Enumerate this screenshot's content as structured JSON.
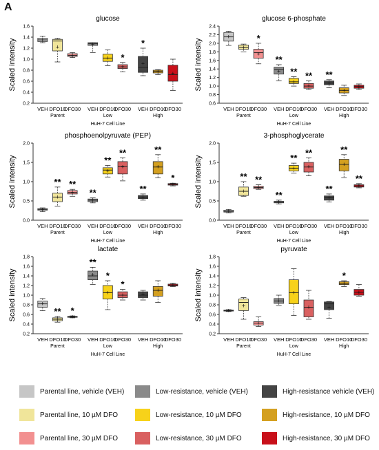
{
  "panel_letter": "A",
  "colors": {
    "pVEH": "#c6c6c6",
    "pD10": "#f0e59a",
    "pD30": "#f29090",
    "lVEH": "#8a8a8a",
    "lD10": "#f7d21a",
    "lD30": "#d96060",
    "hVEH": "#444444",
    "hD10": "#d4a020",
    "hD30": "#c8101a"
  },
  "shared": {
    "ylabel": "Scaled intensity",
    "xlabel": "HuH-7 Cell Line",
    "tick_labels": [
      "VEH",
      "DFO10",
      "DFO30",
      "VEH",
      "DFO10",
      "DFO30",
      "VEH",
      "DFO10",
      "DFO30"
    ],
    "groups": [
      "Parent",
      "Low",
      "High"
    ]
  },
  "chart_data": [
    {
      "type": "box",
      "title": "glucose",
      "ylim": [
        0.2,
        1.6
      ],
      "yticks": [
        "0.2",
        "0.4",
        "0.6",
        "0.8",
        "1.0",
        "1.2",
        "1.4",
        "1.6"
      ],
      "boxes": [
        {
          "q1": 1.32,
          "med": 1.35,
          "q3": 1.38,
          "min": 1.3,
          "max": 1.42,
          "mean": 1.35,
          "sig": ""
        },
        {
          "q1": 1.15,
          "med": 1.33,
          "q3": 1.36,
          "min": 0.95,
          "max": 1.38,
          "mean": 1.22,
          "sig": ""
        },
        {
          "q1": 1.05,
          "med": 1.07,
          "q3": 1.1,
          "min": 1.03,
          "max": 1.12,
          "mean": 1.07,
          "sig": ""
        },
        {
          "q1": 1.25,
          "med": 1.28,
          "q3": 1.3,
          "min": 1.12,
          "max": 1.3,
          "mean": 1.27,
          "sig": ""
        },
        {
          "q1": 0.96,
          "med": 1.02,
          "q3": 1.09,
          "min": 0.88,
          "max": 1.17,
          "mean": 1.02,
          "sig": ""
        },
        {
          "q1": 0.83,
          "med": 0.86,
          "q3": 0.9,
          "min": 0.77,
          "max": 0.94,
          "mean": 0.86,
          "sig": "*"
        },
        {
          "q1": 0.76,
          "med": 0.85,
          "q3": 1.05,
          "min": 0.7,
          "max": 1.2,
          "mean": 0.92,
          "sig": "*"
        },
        {
          "q1": 0.75,
          "med": 0.78,
          "q3": 0.8,
          "min": 0.72,
          "max": 0.81,
          "mean": 0.78,
          "sig": ""
        },
        {
          "q1": 0.6,
          "med": 0.72,
          "q3": 0.89,
          "min": 0.43,
          "max": 1.0,
          "mean": 0.74,
          "sig": ""
        }
      ]
    },
    {
      "type": "box",
      "title": "glucose 6-phosphate",
      "ylim": [
        0.6,
        2.4
      ],
      "yticks": [
        "0.6",
        "0.8",
        "1.0",
        "1.2",
        "1.4",
        "1.6",
        "1.8",
        "2.0",
        "2.2",
        "2.4"
      ],
      "boxes": [
        {
          "q1": 2.05,
          "med": 2.15,
          "q3": 2.25,
          "min": 1.95,
          "max": 2.28,
          "mean": 2.15,
          "sig": ""
        },
        {
          "q1": 1.86,
          "med": 1.9,
          "q3": 1.96,
          "min": 1.8,
          "max": 1.98,
          "mean": 1.9,
          "sig": ""
        },
        {
          "q1": 1.65,
          "med": 1.78,
          "q3": 1.86,
          "min": 1.52,
          "max": 2.0,
          "mean": 1.75,
          "sig": "*"
        },
        {
          "q1": 1.28,
          "med": 1.38,
          "q3": 1.44,
          "min": 1.12,
          "max": 1.5,
          "mean": 1.35,
          "sig": "**"
        },
        {
          "q1": 1.06,
          "med": 1.1,
          "q3": 1.18,
          "min": 1.0,
          "max": 1.22,
          "mean": 1.1,
          "sig": "**"
        },
        {
          "q1": 0.95,
          "med": 1.0,
          "q3": 1.06,
          "min": 0.92,
          "max": 1.12,
          "mean": 1.0,
          "sig": "**"
        },
        {
          "q1": 1.03,
          "med": 1.07,
          "q3": 1.12,
          "min": 0.96,
          "max": 1.15,
          "mean": 1.07,
          "sig": "**"
        },
        {
          "q1": 0.84,
          "med": 0.9,
          "q3": 0.96,
          "min": 0.78,
          "max": 1.02,
          "mean": 0.9,
          "sig": ""
        },
        {
          "q1": 0.95,
          "med": 0.99,
          "q3": 1.02,
          "min": 0.92,
          "max": 1.05,
          "mean": 0.98,
          "sig": ""
        }
      ]
    },
    {
      "type": "box",
      "title": "phosphoenolpyruvate (PEP)",
      "ylim": [
        0.0,
        2.0
      ],
      "yticks": [
        "0.0",
        "0.5",
        "1.0",
        "1.5",
        "2.0"
      ],
      "boxes": [
        {
          "q1": 0.26,
          "med": 0.28,
          "q3": 0.3,
          "min": 0.22,
          "max": 0.32,
          "mean": 0.28,
          "sig": ""
        },
        {
          "q1": 0.48,
          "med": 0.6,
          "q3": 0.7,
          "min": 0.36,
          "max": 0.86,
          "mean": 0.6,
          "sig": "**"
        },
        {
          "q1": 0.68,
          "med": 0.72,
          "q3": 0.77,
          "min": 0.62,
          "max": 0.8,
          "mean": 0.72,
          "sig": "**"
        },
        {
          "q1": 0.48,
          "med": 0.52,
          "q3": 0.55,
          "min": 0.45,
          "max": 0.58,
          "mean": 0.52,
          "sig": "**"
        },
        {
          "q1": 1.2,
          "med": 1.3,
          "q3": 1.36,
          "min": 1.12,
          "max": 1.42,
          "mean": 1.28,
          "sig": "**"
        },
        {
          "q1": 1.2,
          "med": 1.4,
          "q3": 1.52,
          "min": 1.02,
          "max": 1.62,
          "mean": 1.38,
          "sig": "**"
        },
        {
          "q1": 0.56,
          "med": 0.6,
          "q3": 0.64,
          "min": 0.52,
          "max": 0.68,
          "mean": 0.6,
          "sig": "**"
        },
        {
          "q1": 1.2,
          "med": 1.38,
          "q3": 1.52,
          "min": 1.1,
          "max": 1.7,
          "mean": 1.38,
          "sig": "**"
        },
        {
          "q1": 0.91,
          "med": 0.93,
          "q3": 0.95,
          "min": 0.89,
          "max": 0.96,
          "mean": 0.93,
          "sig": "*"
        }
      ]
    },
    {
      "type": "box",
      "title": "3-phosphoglycerate",
      "ylim": [
        0.0,
        2.0
      ],
      "yticks": [
        "0.0",
        "0.5",
        "1.0",
        "1.5",
        "2.0"
      ],
      "boxes": [
        {
          "q1": 0.21,
          "med": 0.23,
          "q3": 0.26,
          "min": 0.19,
          "max": 0.28,
          "mean": 0.23,
          "sig": ""
        },
        {
          "q1": 0.64,
          "med": 0.75,
          "q3": 0.86,
          "min": 0.62,
          "max": 1.0,
          "mean": 0.75,
          "sig": "**"
        },
        {
          "q1": 0.82,
          "med": 0.85,
          "q3": 0.88,
          "min": 0.8,
          "max": 0.92,
          "mean": 0.85,
          "sig": "**"
        },
        {
          "q1": 0.45,
          "med": 0.47,
          "q3": 0.49,
          "min": 0.42,
          "max": 0.52,
          "mean": 0.47,
          "sig": "**"
        },
        {
          "q1": 1.28,
          "med": 1.35,
          "q3": 1.42,
          "min": 1.22,
          "max": 1.48,
          "mean": 1.35,
          "sig": "**"
        },
        {
          "q1": 1.25,
          "med": 1.38,
          "q3": 1.5,
          "min": 1.15,
          "max": 1.62,
          "mean": 1.38,
          "sig": "**"
        },
        {
          "q1": 0.52,
          "med": 0.58,
          "q3": 0.63,
          "min": 0.47,
          "max": 0.68,
          "mean": 0.58,
          "sig": "**"
        },
        {
          "q1": 1.28,
          "med": 1.45,
          "q3": 1.58,
          "min": 1.1,
          "max": 1.7,
          "mean": 1.45,
          "sig": "**"
        },
        {
          "q1": 0.86,
          "med": 0.89,
          "q3": 0.92,
          "min": 0.84,
          "max": 0.95,
          "mean": 0.89,
          "sig": "**"
        }
      ]
    },
    {
      "type": "box",
      "title": "lactate",
      "ylim": [
        0.2,
        1.8
      ],
      "yticks": [
        "0.2",
        "0.4",
        "0.6",
        "0.8",
        "1.0",
        "1.2",
        "1.4",
        "1.6",
        "1.8"
      ],
      "boxes": [
        {
          "q1": 0.75,
          "med": 0.82,
          "q3": 0.88,
          "min": 0.68,
          "max": 0.93,
          "mean": 0.82,
          "sig": ""
        },
        {
          "q1": 0.47,
          "med": 0.5,
          "q3": 0.53,
          "min": 0.44,
          "max": 0.56,
          "mean": 0.5,
          "sig": "**"
        },
        {
          "q1": 0.54,
          "med": 0.55,
          "q3": 0.56,
          "min": 0.53,
          "max": 0.57,
          "mean": 0.55,
          "sig": "*"
        },
        {
          "q1": 1.32,
          "med": 1.4,
          "q3": 1.5,
          "min": 1.22,
          "max": 1.58,
          "mean": 1.42,
          "sig": "**"
        },
        {
          "q1": 0.92,
          "med": 1.05,
          "q3": 1.2,
          "min": 0.7,
          "max": 1.3,
          "mean": 1.05,
          "sig": "*"
        },
        {
          "q1": 0.95,
          "med": 1.0,
          "q3": 1.07,
          "min": 0.9,
          "max": 1.12,
          "mean": 1.0,
          "sig": "*"
        },
        {
          "q1": 0.95,
          "med": 1.0,
          "q3": 1.07,
          "min": 0.9,
          "max": 1.1,
          "mean": 1.02,
          "sig": ""
        },
        {
          "q1": 0.98,
          "med": 1.1,
          "q3": 1.18,
          "min": 0.85,
          "max": 1.3,
          "mean": 1.1,
          "sig": ""
        },
        {
          "q1": 1.19,
          "med": 1.21,
          "q3": 1.23,
          "min": 1.18,
          "max": 1.25,
          "mean": 1.21,
          "sig": ""
        }
      ]
    },
    {
      "type": "box",
      "title": "pyruvate",
      "ylim": [
        0.2,
        1.8
      ],
      "yticks": [
        "0.2",
        "0.4",
        "0.6",
        "0.8",
        "1.0",
        "1.2",
        "1.4",
        "1.6",
        "1.8"
      ],
      "boxes": [
        {
          "q1": 0.67,
          "med": 0.68,
          "q3": 0.69,
          "min": 0.66,
          "max": 0.7,
          "mean": 0.68,
          "sig": ""
        },
        {
          "q1": 0.68,
          "med": 0.85,
          "q3": 0.92,
          "min": 0.5,
          "max": 0.95,
          "mean": 0.78,
          "sig": ""
        },
        {
          "q1": 0.38,
          "med": 0.42,
          "q3": 0.45,
          "min": 0.35,
          "max": 0.55,
          "mean": 0.42,
          "sig": ""
        },
        {
          "q1": 0.83,
          "med": 0.88,
          "q3": 0.93,
          "min": 0.78,
          "max": 1.0,
          "mean": 0.88,
          "sig": ""
        },
        {
          "q1": 0.82,
          "med": 1.05,
          "q3": 1.32,
          "min": 0.58,
          "max": 1.55,
          "mean": 1.05,
          "sig": ""
        },
        {
          "q1": 0.55,
          "med": 0.75,
          "q3": 0.9,
          "min": 0.5,
          "max": 1.1,
          "mean": 0.75,
          "sig": ""
        },
        {
          "q1": 0.7,
          "med": 0.82,
          "q3": 0.86,
          "min": 0.52,
          "max": 0.87,
          "mean": 0.75,
          "sig": ""
        },
        {
          "q1": 1.22,
          "med": 1.25,
          "q3": 1.28,
          "min": 1.18,
          "max": 1.3,
          "mean": 1.25,
          "sig": "*"
        },
        {
          "q1": 1.0,
          "med": 1.06,
          "q3": 1.12,
          "min": 0.98,
          "max": 1.22,
          "mean": 1.06,
          "sig": ""
        }
      ]
    }
  ],
  "legend": [
    {
      "label": "Parental line, vehicle (VEH)",
      "color": "#c6c6c6"
    },
    {
      "label": "Low-resistance, vehicle (VEH)",
      "color": "#8a8a8a"
    },
    {
      "label": "High-resistance vehicle (VEH)",
      "color": "#444444"
    },
    {
      "label": "Parental line, 10 µM DFO",
      "color": "#f0e59a"
    },
    {
      "label": "Low-resistance, 10 µM DFO",
      "color": "#f7d21a"
    },
    {
      "label": "High-resistance, 10 µM DFO",
      "color": "#d4a020"
    },
    {
      "label": "Parental line, 30 µM DFO",
      "color": "#f29090"
    },
    {
      "label": "Low-resistance, 30 µM DFO",
      "color": "#d96060"
    },
    {
      "label": "High-resistance, 30 µM DFO",
      "color": "#c8101a"
    }
  ]
}
